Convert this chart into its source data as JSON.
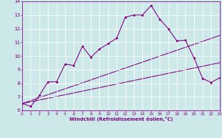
{
  "xlabel": "Windchill (Refroidissement éolien,°C)",
  "bg_color": "#cce8e8",
  "line_color": "#800080",
  "grid_color": "#ffffff",
  "xmin": 0,
  "xmax": 23,
  "ymin": 6,
  "ymax": 14,
  "x_ticks": [
    0,
    1,
    2,
    3,
    4,
    5,
    6,
    7,
    8,
    9,
    10,
    11,
    12,
    13,
    14,
    15,
    16,
    17,
    18,
    19,
    20,
    21,
    22,
    23
  ],
  "y_ticks": [
    6,
    7,
    8,
    9,
    10,
    11,
    12,
    13,
    14
  ],
  "line1_x": [
    0,
    1,
    2,
    3,
    4,
    5,
    6,
    7,
    8,
    9,
    10,
    11,
    12,
    13,
    14,
    15,
    16,
    17,
    18,
    19,
    20,
    21,
    22,
    23
  ],
  "line1_y": [
    6.5,
    6.3,
    7.1,
    8.1,
    8.1,
    9.4,
    9.3,
    10.7,
    9.9,
    10.5,
    10.9,
    11.3,
    12.85,
    13.0,
    13.0,
    13.7,
    12.7,
    12.0,
    11.1,
    11.15,
    9.85,
    8.35,
    8.05,
    8.4
  ],
  "line2_x": [
    0,
    23
  ],
  "line2_y": [
    6.5,
    11.5
  ],
  "line3_x": [
    0,
    23
  ],
  "line3_y": [
    6.5,
    9.5
  ]
}
